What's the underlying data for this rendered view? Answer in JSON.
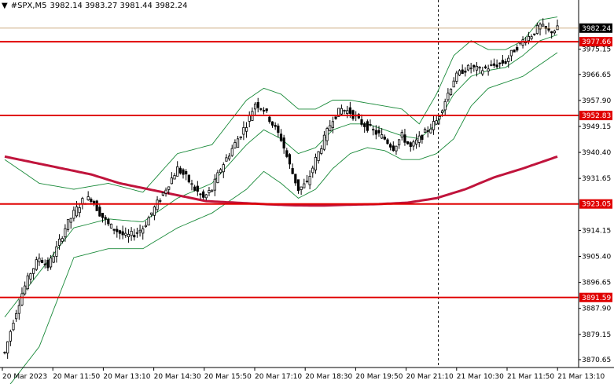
{
  "header": {
    "arrow": "▼",
    "symbol": "#SPX,M5",
    "ohlc": "3982.14 3983.27 3981.44 3982.24"
  },
  "current_price": "3982.24",
  "colors": {
    "background": "#ffffff",
    "axis": "#000000",
    "candle": "#000000",
    "bands": "#1a8a3a",
    "ma": "#c0143c",
    "levels": "#e00000",
    "current_label_bg": "#000000"
  },
  "icons": {
    "dropdown": "triangle-down-icon"
  },
  "chart_data": {
    "type": "candlestick",
    "y_axis": {
      "range": [
        3868,
        3988
      ],
      "ticks": [
        "3975.15",
        "3966.65",
        "3957.90",
        "3949.15",
        "3940.40",
        "3931.65",
        "3914.15",
        "3905.40",
        "3896.65",
        "3887.90",
        "3879.15",
        "3870.65"
      ]
    },
    "x_axis": {
      "ticks": [
        "20 Mar 2023",
        "20 Mar 11:50",
        "20 Mar 13:10",
        "20 Mar 14:30",
        "20 Mar 15:50",
        "20 Mar 17:10",
        "20 Mar 18:30",
        "20 Mar 19:50",
        "20 Mar 21:10",
        "21 Mar 10:30",
        "21 Mar 11:50",
        "21 Mar 13:10"
      ]
    },
    "levels": [
      {
        "label": "3977.66",
        "value": 3977.66
      },
      {
        "label": "3952.83",
        "value": 3952.83
      },
      {
        "label": "3923.05",
        "value": 3923.05
      },
      {
        "label": "3891.59",
        "value": 3891.59
      }
    ],
    "session_break": "21 Mar 21:10",
    "price_path": [
      [
        0,
        3873
      ],
      [
        3,
        3884
      ],
      [
        6,
        3893
      ],
      [
        9,
        3900
      ],
      [
        12,
        3905
      ],
      [
        15,
        3902
      ],
      [
        18,
        3908
      ],
      [
        21,
        3915
      ],
      [
        24,
        3920
      ],
      [
        27,
        3924
      ],
      [
        30,
        3925
      ],
      [
        33,
        3920
      ],
      [
        36,
        3916
      ],
      [
        39,
        3914
      ],
      [
        42,
        3912
      ],
      [
        45,
        3913
      ],
      [
        48,
        3915
      ],
      [
        51,
        3920
      ],
      [
        54,
        3925
      ],
      [
        57,
        3930
      ],
      [
        60,
        3935
      ],
      [
        63,
        3932
      ],
      [
        66,
        3928
      ],
      [
        69,
        3925
      ],
      [
        72,
        3928
      ],
      [
        75,
        3935
      ],
      [
        78,
        3940
      ],
      [
        81,
        3945
      ],
      [
        84,
        3950
      ],
      [
        87,
        3957
      ],
      [
        90,
        3955
      ],
      [
        93,
        3950
      ],
      [
        96,
        3945
      ],
      [
        99,
        3936
      ],
      [
        102,
        3928
      ],
      [
        105,
        3930
      ],
      [
        108,
        3938
      ],
      [
        111,
        3945
      ],
      [
        114,
        3952
      ],
      [
        117,
        3955
      ],
      [
        120,
        3954
      ],
      [
        123,
        3951
      ],
      [
        126,
        3949
      ],
      [
        129,
        3947
      ],
      [
        132,
        3945
      ],
      [
        135,
        3942
      ],
      [
        138,
        3946
      ],
      [
        141,
        3942
      ],
      [
        144,
        3945
      ],
      [
        147,
        3948
      ],
      [
        150,
        3951
      ],
      [
        153,
        3958
      ],
      [
        156,
        3965
      ],
      [
        159,
        3968
      ],
      [
        162,
        3969
      ],
      [
        165,
        3968
      ],
      [
        168,
        3969
      ],
      [
        171,
        3970
      ],
      [
        174,
        3971
      ],
      [
        177,
        3975
      ],
      [
        180,
        3978
      ],
      [
        183,
        3980
      ],
      [
        186,
        3983
      ],
      [
        189,
        3981
      ],
      [
        192,
        3982
      ]
    ],
    "bands_upper": [
      [
        0,
        3938
      ],
      [
        12,
        3930
      ],
      [
        24,
        3928
      ],
      [
        36,
        3930
      ],
      [
        48,
        3927
      ],
      [
        60,
        3940
      ],
      [
        72,
        3943
      ],
      [
        84,
        3958
      ],
      [
        90,
        3962
      ],
      [
        96,
        3960
      ],
      [
        102,
        3955
      ],
      [
        108,
        3955
      ],
      [
        114,
        3958
      ],
      [
        120,
        3958
      ],
      [
        126,
        3957
      ],
      [
        132,
        3956
      ],
      [
        138,
        3955
      ],
      [
        144,
        3950
      ],
      [
        150,
        3960
      ],
      [
        156,
        3973
      ],
      [
        162,
        3978
      ],
      [
        168,
        3975
      ],
      [
        174,
        3975
      ],
      [
        180,
        3978
      ],
      [
        186,
        3985
      ],
      [
        192,
        3986
      ]
    ],
    "bands_middle": [
      [
        0,
        3885
      ],
      [
        12,
        3900
      ],
      [
        24,
        3915
      ],
      [
        36,
        3918
      ],
      [
        48,
        3917
      ],
      [
        60,
        3925
      ],
      [
        72,
        3930
      ],
      [
        84,
        3943
      ],
      [
        90,
        3948
      ],
      [
        96,
        3945
      ],
      [
        102,
        3940
      ],
      [
        108,
        3942
      ],
      [
        114,
        3948
      ],
      [
        120,
        3950
      ],
      [
        126,
        3950
      ],
      [
        132,
        3948
      ],
      [
        138,
        3946
      ],
      [
        144,
        3945
      ],
      [
        150,
        3950
      ],
      [
        156,
        3960
      ],
      [
        162,
        3966
      ],
      [
        168,
        3968
      ],
      [
        174,
        3969
      ],
      [
        180,
        3973
      ],
      [
        186,
        3978
      ],
      [
        192,
        3980
      ]
    ],
    "bands_lower": [
      [
        0,
        3860
      ],
      [
        12,
        3875
      ],
      [
        24,
        3905
      ],
      [
        36,
        3908
      ],
      [
        48,
        3908
      ],
      [
        60,
        3915
      ],
      [
        72,
        3920
      ],
      [
        84,
        3928
      ],
      [
        90,
        3934
      ],
      [
        96,
        3930
      ],
      [
        102,
        3925
      ],
      [
        108,
        3928
      ],
      [
        114,
        3935
      ],
      [
        120,
        3940
      ],
      [
        126,
        3942
      ],
      [
        132,
        3941
      ],
      [
        138,
        3938
      ],
      [
        144,
        3938
      ],
      [
        150,
        3940
      ],
      [
        156,
        3945
      ],
      [
        162,
        3956
      ],
      [
        168,
        3962
      ],
      [
        174,
        3964
      ],
      [
        180,
        3966
      ],
      [
        186,
        3970
      ],
      [
        192,
        3974
      ]
    ],
    "ma_path": [
      [
        0,
        3939
      ],
      [
        10,
        3937
      ],
      [
        20,
        3935
      ],
      [
        30,
        3933
      ],
      [
        40,
        3930
      ],
      [
        50,
        3928
      ],
      [
        60,
        3926
      ],
      [
        70,
        3924
      ],
      [
        80,
        3923.5
      ],
      [
        90,
        3923
      ],
      [
        100,
        3922.6
      ],
      [
        110,
        3922.5
      ],
      [
        120,
        3922.8
      ],
      [
        130,
        3923
      ],
      [
        140,
        3923.5
      ],
      [
        150,
        3925
      ],
      [
        160,
        3928
      ],
      [
        170,
        3932
      ],
      [
        180,
        3935
      ],
      [
        192,
        3939
      ]
    ]
  }
}
